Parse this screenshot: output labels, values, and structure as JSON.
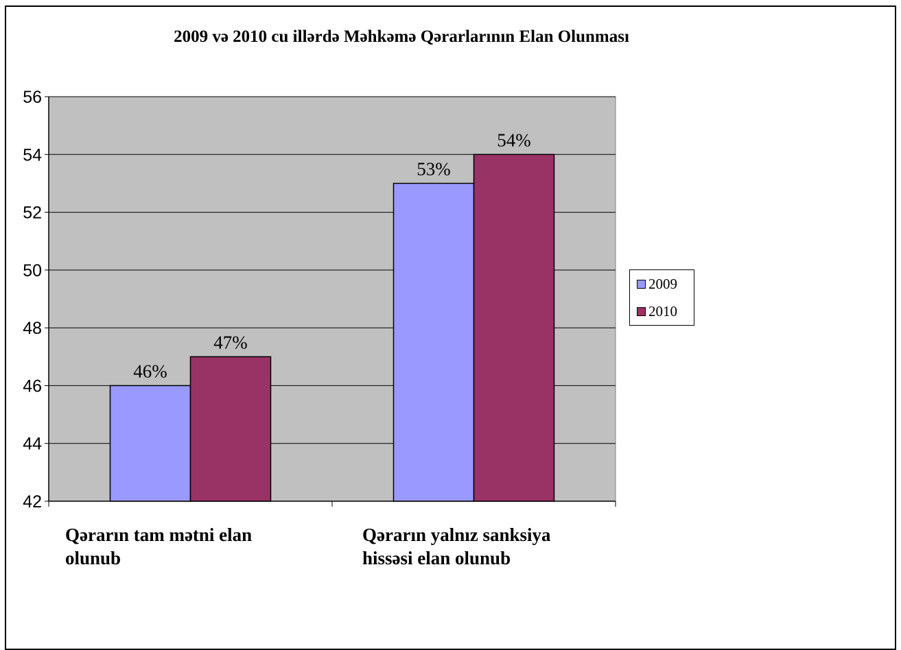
{
  "chart_data": {
    "type": "bar",
    "title": "2009 və 2010 cu illərdə Məhkəmə Qərarlarının Elan Olunması",
    "categories": [
      "Qərarın tam mətni elan olunub",
      "Qərarın yalnız sanksiya hissəsi elan olunub"
    ],
    "series": [
      {
        "name": "2009",
        "values": [
          46,
          53
        ],
        "labels": [
          "46%",
          "53%"
        ],
        "color": "#9999ff"
      },
      {
        "name": "2010",
        "values": [
          47,
          54
        ],
        "labels": [
          "47%",
          "54%"
        ],
        "color": "#993366"
      }
    ],
    "ylim": [
      42,
      56
    ],
    "yticks": [
      "42",
      "44",
      "46",
      "48",
      "50",
      "52",
      "54",
      "56"
    ],
    "xlabel": "",
    "ylabel": "",
    "grid": true,
    "legend_position": "right",
    "plot_background": "#c0c0c0"
  }
}
